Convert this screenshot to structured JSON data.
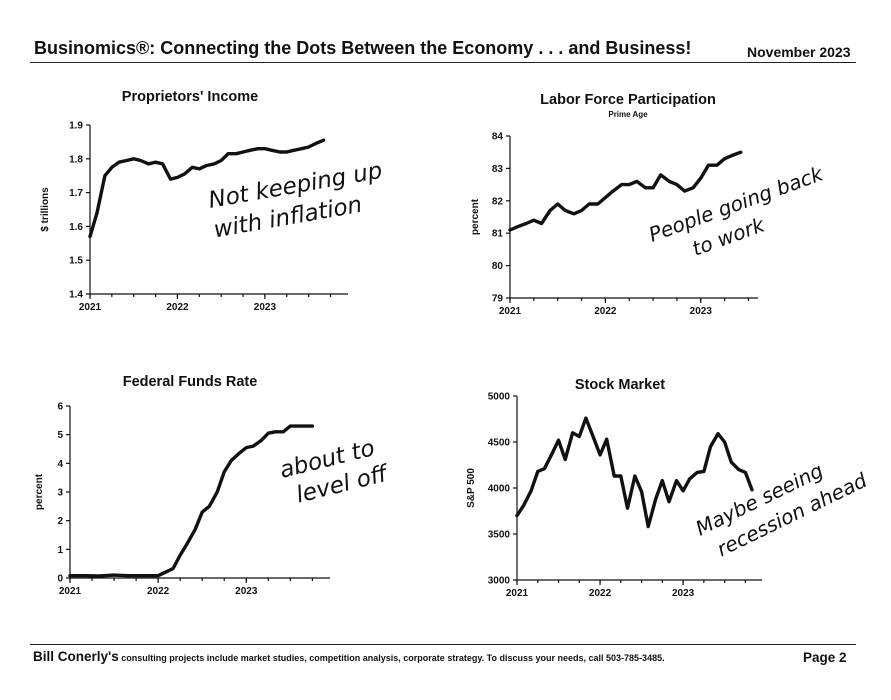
{
  "header": {
    "title": "Businomics®: Connecting the Dots Between the Economy . . . and Business!",
    "date": "November 2023"
  },
  "footer": {
    "name": "Bill Conerly's",
    "text": " consulting projects include market studies, competition analysis, corporate strategy.  To discuss your needs, call 503-785-3485.",
    "page": "Page 2"
  },
  "chart_data": [
    {
      "type": "line",
      "title": "Proprietors' Income",
      "ylabel": "$ trillions",
      "ylim": [
        1.4,
        1.9
      ],
      "yticks": [
        "1.4",
        "1.5",
        "1.6",
        "1.7",
        "1.8",
        "1.9"
      ],
      "xticks": [
        "2021",
        "2022",
        "2023"
      ],
      "xlim": [
        2021,
        2023.95
      ],
      "annotation": [
        "Not keeping up",
        "with inflation"
      ],
      "series": [
        {
          "x": [
            2021.0,
            2021.08,
            2021.17,
            2021.25,
            2021.33,
            2021.42,
            2021.5,
            2021.58,
            2021.67,
            2021.75,
            2021.83,
            2021.92,
            2022.0,
            2022.08,
            2022.17,
            2022.25,
            2022.33,
            2022.42,
            2022.5,
            2022.58,
            2022.67,
            2022.75,
            2022.83,
            2022.92,
            2023.0,
            2023.08,
            2023.17,
            2023.25,
            2023.33,
            2023.42,
            2023.5,
            2023.58,
            2023.67
          ],
          "values": [
            1.57,
            1.64,
            1.75,
            1.775,
            1.79,
            1.795,
            1.8,
            1.795,
            1.785,
            1.79,
            1.785,
            1.74,
            1.745,
            1.755,
            1.775,
            1.77,
            1.78,
            1.785,
            1.795,
            1.815,
            1.815,
            1.82,
            1.825,
            1.83,
            1.83,
            1.825,
            1.82,
            1.82,
            1.825,
            1.83,
            1.835,
            1.845,
            1.855
          ]
        }
      ]
    },
    {
      "type": "line",
      "title": "Labor Force Participation",
      "subtitle": "Prime Age",
      "ylabel": "percent",
      "ylim": [
        79,
        84
      ],
      "yticks": [
        "79",
        "80",
        "81",
        "82",
        "83",
        "84"
      ],
      "xticks": [
        "2021",
        "2022",
        "2023"
      ],
      "xlim": [
        2021,
        2023.6
      ],
      "annotation": [
        "People going back",
        "to work"
      ],
      "series": [
        {
          "x": [
            2021.0,
            2021.08,
            2021.17,
            2021.25,
            2021.33,
            2021.42,
            2021.5,
            2021.58,
            2021.67,
            2021.75,
            2021.83,
            2021.92,
            2022.0,
            2022.08,
            2022.17,
            2022.25,
            2022.33,
            2022.42,
            2022.5,
            2022.58,
            2022.67,
            2022.75,
            2022.83,
            2022.92,
            2023.0,
            2023.08,
            2023.17,
            2023.25,
            2023.33,
            2023.42
          ],
          "values": [
            81.1,
            81.2,
            81.3,
            81.4,
            81.3,
            81.7,
            81.9,
            81.7,
            81.6,
            81.7,
            81.9,
            81.9,
            82.1,
            82.3,
            82.5,
            82.5,
            82.6,
            82.4,
            82.4,
            82.8,
            82.6,
            82.5,
            82.3,
            82.4,
            82.7,
            83.1,
            83.1,
            83.3,
            83.4,
            83.5
          ]
        }
      ]
    },
    {
      "type": "line",
      "title": "Federal Funds Rate",
      "ylabel": "percent",
      "ylim": [
        0,
        6
      ],
      "yticks": [
        "0",
        "1",
        "2",
        "3",
        "4",
        "5",
        "6"
      ],
      "xticks": [
        "2021",
        "2022",
        "2023"
      ],
      "xlim": [
        2021,
        2023.95
      ],
      "annotation": [
        "about to",
        "level off"
      ],
      "series": [
        {
          "x": [
            2021.0,
            2021.17,
            2021.33,
            2021.5,
            2021.67,
            2021.83,
            2022.0,
            2022.08,
            2022.17,
            2022.25,
            2022.33,
            2022.42,
            2022.5,
            2022.58,
            2022.67,
            2022.75,
            2022.83,
            2022.92,
            2023.0,
            2023.08,
            2023.17,
            2023.25,
            2023.33,
            2023.42,
            2023.5,
            2023.58,
            2023.67,
            2023.75
          ],
          "values": [
            0.08,
            0.08,
            0.07,
            0.1,
            0.08,
            0.08,
            0.08,
            0.2,
            0.33,
            0.8,
            1.2,
            1.7,
            2.3,
            2.5,
            3.0,
            3.7,
            4.1,
            4.35,
            4.55,
            4.6,
            4.8,
            5.05,
            5.1,
            5.1,
            5.3,
            5.3,
            5.3,
            5.3
          ]
        }
      ]
    },
    {
      "type": "line",
      "title": "Stock Market",
      "ylabel": "S&P 500",
      "ylim": [
        3000,
        5000
      ],
      "yticks": [
        "3000",
        "3500",
        "4000",
        "4500",
        "5000"
      ],
      "xticks": [
        "2021",
        "2022",
        "2023"
      ],
      "xlim": [
        2021,
        2023.95
      ],
      "annotation": [
        "Maybe seeing",
        "recession ahead"
      ],
      "series": [
        {
          "x": [
            2021.0,
            2021.08,
            2021.17,
            2021.25,
            2021.33,
            2021.42,
            2021.5,
            2021.58,
            2021.67,
            2021.75,
            2021.83,
            2021.92,
            2022.0,
            2022.08,
            2022.17,
            2022.25,
            2022.33,
            2022.42,
            2022.5,
            2022.58,
            2022.67,
            2022.75,
            2022.83,
            2022.92,
            2023.0,
            2023.08,
            2023.17,
            2023.25,
            2023.33,
            2023.42,
            2023.5,
            2023.58,
            2023.67,
            2023.75,
            2023.83
          ],
          "values": [
            3700,
            3810,
            3970,
            4180,
            4210,
            4370,
            4520,
            4310,
            4600,
            4560,
            4760,
            4550,
            4360,
            4530,
            4130,
            4130,
            3780,
            4130,
            3960,
            3580,
            3880,
            4080,
            3850,
            4080,
            3970,
            4100,
            4170,
            4180,
            4450,
            4590,
            4500,
            4280,
            4200,
            4170,
            3980
          ]
        }
      ]
    }
  ]
}
